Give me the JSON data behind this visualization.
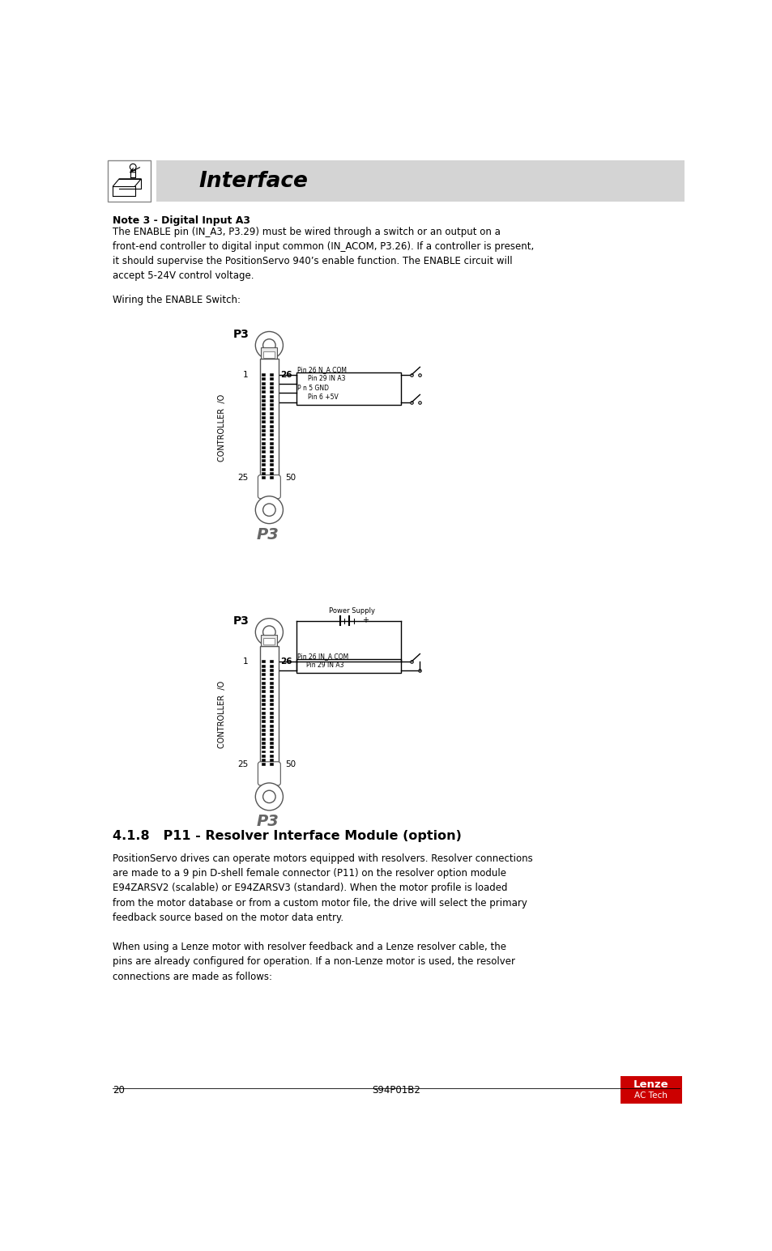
{
  "page_width": 9.54,
  "page_height": 15.45,
  "bg_color": "#ffffff",
  "header_bg": "#d4d4d4",
  "header_text": "Interface",
  "note_title": "Note 3 - Digital Input A3",
  "note_body1": "The ENABLE pin (IN_A3, P3.29) must be wired through a switch or an output on a\nfront-end controller to digital input common (IN_ACOM, P3.26). If a controller is present,\nit should supervise the PositionServo 940’s enable function. The ENABLE circuit will\naccept 5-24V control voltage.",
  "wiring_label": "Wiring the ENABLE Switch:",
  "section_title": "4.1.8   P11 - Resolver Interface Module (option)",
  "body_text1": "PositionServo drives can operate motors equipped with resolvers. Resolver connections\nare made to a 9 pin D-shell female connector (P11) on the resolver option module\nE94ZARSV2 (scalable) or E94ZARSV3 (standard). When the motor profile is loaded\nfrom the motor database or from a custom motor file, the drive will select the primary\nfeedback source based on the motor data entry.",
  "body_text2": "When using a Lenze motor with resolver feedback and a Lenze resolver cable, the\npins are already configured for operation. If a non-Lenze motor is used, the resolver\nconnections are made as follows:",
  "footer_page": "20",
  "footer_model": "S94P01B2",
  "controller_io_label": "CONTROLLER  /O",
  "pin26_text_top": "Pin 26 N_A COM",
  "pin29_text_top": "Pin 29 IN A3",
  "pin5_gnd_text": "P n 5 GND",
  "pin6_5v_text": "Pin 6 +5V",
  "pin26_text_bot": "Pin 26 IN_A COM",
  "pin29_text_bot": "Pin 29 IN A3",
  "power_supply_label": "Power Supply"
}
